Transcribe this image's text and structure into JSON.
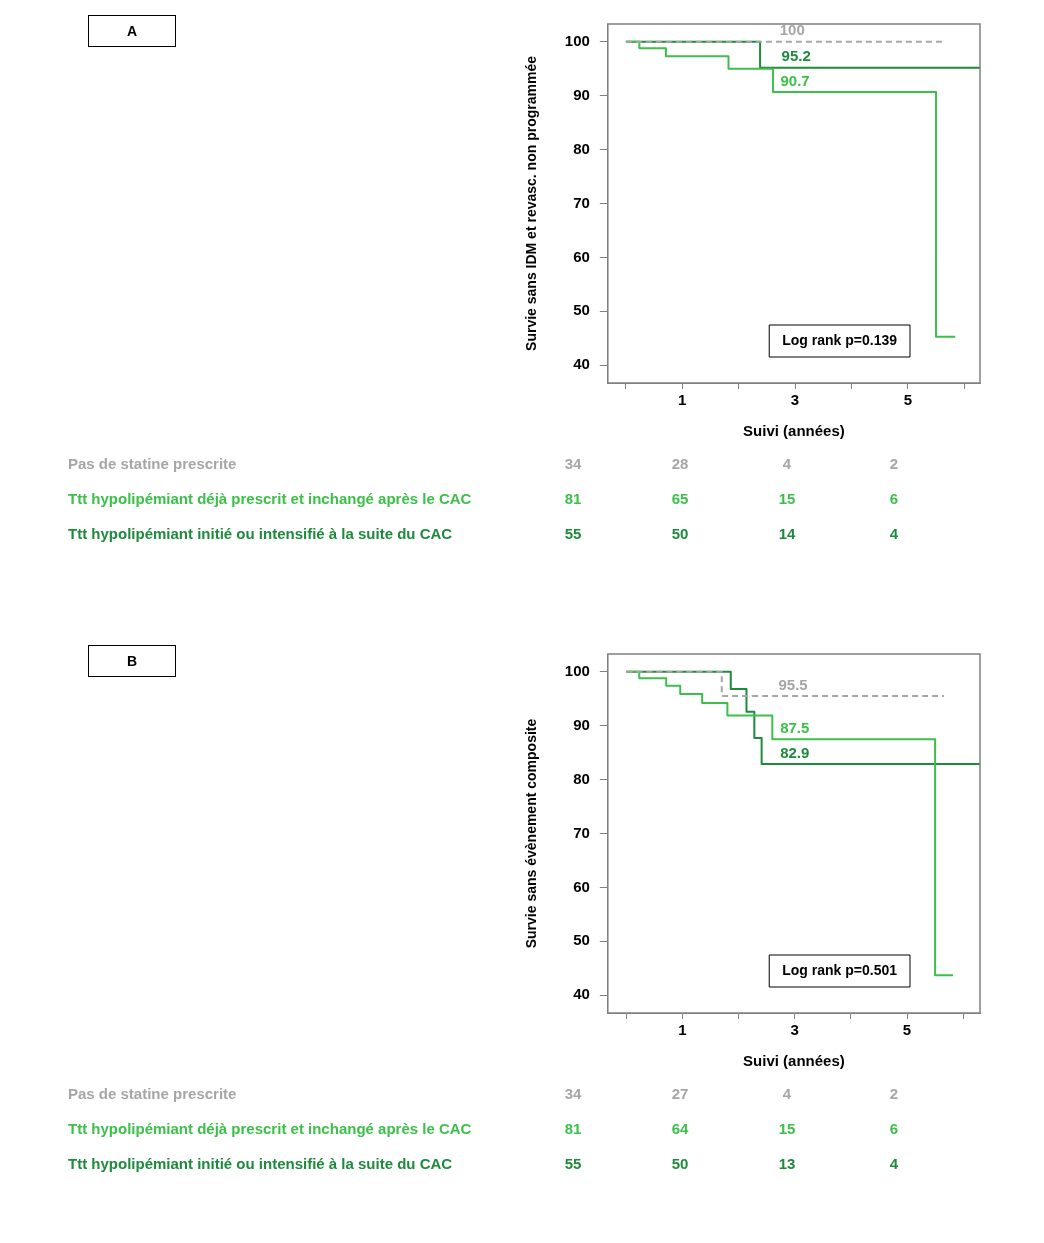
{
  "chart_data": [
    {
      "type": "step",
      "xlabel": "Suivi (années)",
      "ylabel": "Survie sans IDM et revasc. non programmée",
      "xlim": [
        -0.32,
        6.28
      ],
      "ylim": [
        36.7,
        103.3
      ],
      "xticks": [
        {
          "value": 0,
          "label": null
        },
        1,
        {
          "value": 2,
          "label": null
        },
        3,
        {
          "value": 4,
          "label": null
        },
        5,
        {
          "value": 6,
          "label": null
        }
      ],
      "yticks": [
        40,
        50,
        60,
        70,
        80,
        90,
        100
      ],
      "legend": false,
      "grid": false,
      "marker": "none",
      "series": [
        {
          "name": "Pas de statine prescrite",
          "color": "#a6a6a6",
          "line_style": "dashed",
          "x": [
            0,
            5.65
          ],
          "values": [
            100,
            100
          ]
        },
        {
          "name": "Ttt hypolipémiant déjà prescrit et inchangé après le CAC",
          "color": "#3cc04a",
          "line_style": "solid",
          "x": [
            0,
            0.24,
            0.71,
            1.82,
            2.61,
            5.5,
            5.84
          ],
          "values": [
            100,
            98.8,
            97.3,
            95.0,
            90.7,
            45.3,
            45.3
          ]
        },
        {
          "name": "Ttt hypolipémiant initié ou intensifié à la suite du CAC",
          "color": "#1e8a3c",
          "line_style": "solid",
          "x": [
            0,
            2.38,
            6.28
          ],
          "values": [
            100,
            95.2,
            95.2
          ]
        }
      ],
      "annotations": [
        "A",
        "Log rank p=0.139",
        {
          "text": "100",
          "x": 2.95,
          "y": 100
        },
        {
          "text": "95.2",
          "x": 3.02,
          "y": 95.2
        },
        {
          "text": "90.7",
          "x": 3.0,
          "y": 90.7
        },
        "34",
        "28",
        "4",
        "2",
        "81",
        "65",
        "15",
        "6",
        "55",
        "50",
        "14",
        "4"
      ]
    },
    {
      "type": "step",
      "xlabel": "Suivi (années)",
      "ylabel": "Survie sans évènement composite",
      "xlim": [
        -0.33,
        6.3
      ],
      "ylim": [
        36.7,
        103.3
      ],
      "xticks": [
        {
          "value": 0,
          "label": null
        },
        1,
        {
          "value": 2,
          "label": null
        },
        3,
        {
          "value": 4,
          "label": null
        },
        5,
        {
          "value": 6,
          "label": null
        }
      ],
      "yticks": [
        40,
        50,
        60,
        70,
        80,
        90,
        100
      ],
      "legend": false,
      "grid": false,
      "marker": "none",
      "series": [
        {
          "name": "Pas de statine prescrite",
          "color": "#a6a6a6",
          "line_style": "dashed",
          "x": [
            0,
            1.7,
            5.66
          ],
          "values": [
            100,
            95.5,
            95.5
          ]
        },
        {
          "name": "Ttt hypolipémiant déjà prescrit et inchangé après le CAC",
          "color": "#3cc04a",
          "line_style": "solid",
          "x": [
            0,
            0.23,
            0.71,
            0.96,
            1.35,
            1.8,
            2.6,
            5.5,
            5.82
          ],
          "values": [
            100,
            98.8,
            97.4,
            95.9,
            94.2,
            91.9,
            87.5,
            43.7,
            43.7
          ]
        },
        {
          "name": "Ttt hypolipémiant initié ou intensifié à la suite du CAC",
          "color": "#1e8a3c",
          "line_style": "solid",
          "x": [
            0,
            1.86,
            2.14,
            2.28,
            2.41,
            6.3
          ],
          "values": [
            100,
            96.8,
            92.6,
            87.7,
            82.9,
            82.9
          ]
        }
      ],
      "annotations": [
        "B",
        "Log rank p=0.501",
        {
          "text": "95.5",
          "x": 2.97,
          "y": 95.5
        },
        {
          "text": "87.5",
          "x": 3.0,
          "y": 87.5
        },
        {
          "text": "82.9",
          "x": 3.0,
          "y": 82.9
        },
        "34",
        "27",
        "4",
        "2",
        "81",
        "64",
        "15",
        "6",
        "55",
        "50",
        "13",
        "4"
      ]
    }
  ]
}
